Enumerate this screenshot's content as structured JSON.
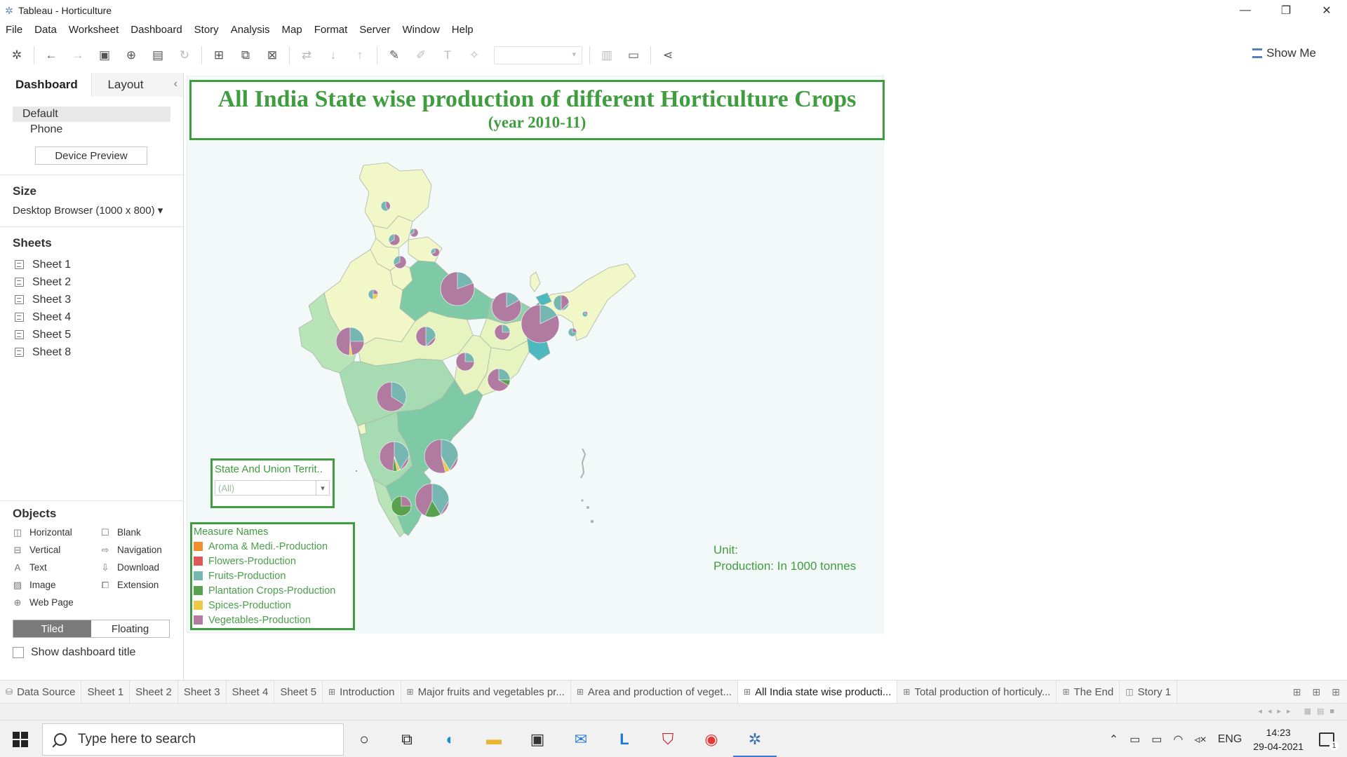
{
  "window": {
    "title": "Tableau - Horticulture",
    "controls": [
      "—",
      "❐",
      "✕"
    ]
  },
  "menu": [
    "File",
    "Data",
    "Worksheet",
    "Dashboard",
    "Story",
    "Analysis",
    "Map",
    "Format",
    "Server",
    "Window",
    "Help"
  ],
  "toolbar": {
    "show_me": "Show Me"
  },
  "left_pane": {
    "tabs": {
      "dashboard": "Dashboard",
      "layout": "Layout"
    },
    "devices": {
      "default": "Default",
      "phone": "Phone",
      "preview": "Device Preview"
    },
    "size": {
      "heading": "Size",
      "value": "Desktop Browser (1000 x 800) ▾"
    },
    "sheets": {
      "heading": "Sheets",
      "items": [
        "Sheet 1",
        "Sheet 2",
        "Sheet 3",
        "Sheet 4",
        "Sheet 5",
        "Sheet 8"
      ]
    },
    "objects": {
      "heading": "Objects",
      "items": [
        {
          "label": "Horizontal",
          "icon": "horizontal-icon"
        },
        {
          "label": "Blank",
          "icon": "blank-icon"
        },
        {
          "label": "Vertical",
          "icon": "vertical-icon"
        },
        {
          "label": "Navigation",
          "icon": "navigation-icon"
        },
        {
          "label": "Text",
          "icon": "text-icon"
        },
        {
          "label": "Download",
          "icon": "download-icon"
        },
        {
          "label": "Image",
          "icon": "image-icon"
        },
        {
          "label": "Extension",
          "icon": "extension-icon"
        },
        {
          "label": "Web Page",
          "icon": "web-page-icon"
        }
      ]
    },
    "layout_mode": {
      "tiled": "Tiled",
      "floating": "Floating"
    },
    "show_dashboard_title": "Show dashboard title"
  },
  "dashboard": {
    "title": "All India State wise production of different Horticulture Crops",
    "subtitle": "(year 2010-11)",
    "filter": {
      "title": "State And Union Territ..",
      "value": "(All)"
    },
    "legend": {
      "title": "Measure Names",
      "items": [
        {
          "label": "Aroma & Medi.-Production",
          "color": "#f28e2b"
        },
        {
          "label": "Flowers-Production",
          "color": "#e15759"
        },
        {
          "label": "Fruits-Production",
          "color": "#76b7b2"
        },
        {
          "label": "Plantation Crops-Production",
          "color": "#59a14f"
        },
        {
          "label": "Spices-Production",
          "color": "#edc948"
        },
        {
          "label": "Vegetables-Production",
          "color": "#b07aa1"
        }
      ]
    },
    "unit_note": {
      "line1": "Unit:",
      "line2": "Production: In 1000 tonnes"
    }
  },
  "sheet_tabs": [
    {
      "label": "Data Source",
      "icon": "database-icon",
      "active": false
    },
    {
      "label": "Sheet 1",
      "icon": "",
      "active": false
    },
    {
      "label": "Sheet 2",
      "icon": "",
      "active": false
    },
    {
      "label": "Sheet 3",
      "icon": "",
      "active": false
    },
    {
      "label": "Sheet 4",
      "icon": "",
      "active": false
    },
    {
      "label": "Sheet 5",
      "icon": "",
      "active": false
    },
    {
      "label": "Introduction",
      "icon": "dashboard-icon",
      "active": false
    },
    {
      "label": "Major fruits and vegetables pr...",
      "icon": "dashboard-icon",
      "active": false
    },
    {
      "label": "Area and production of veget...",
      "icon": "dashboard-icon",
      "active": false
    },
    {
      "label": "All India state wise producti...",
      "icon": "dashboard-icon",
      "active": true
    },
    {
      "label": "Total production of horticuly...",
      "icon": "dashboard-icon",
      "active": false
    },
    {
      "label": "The End",
      "icon": "dashboard-icon",
      "active": false
    },
    {
      "label": "Story 1",
      "icon": "story-icon",
      "active": false
    }
  ],
  "taskbar": {
    "search_placeholder": "Type here to search",
    "tray": {
      "lang": "ENG",
      "time": "14:23",
      "date": "29-04-2021",
      "notifications": "1"
    }
  }
}
